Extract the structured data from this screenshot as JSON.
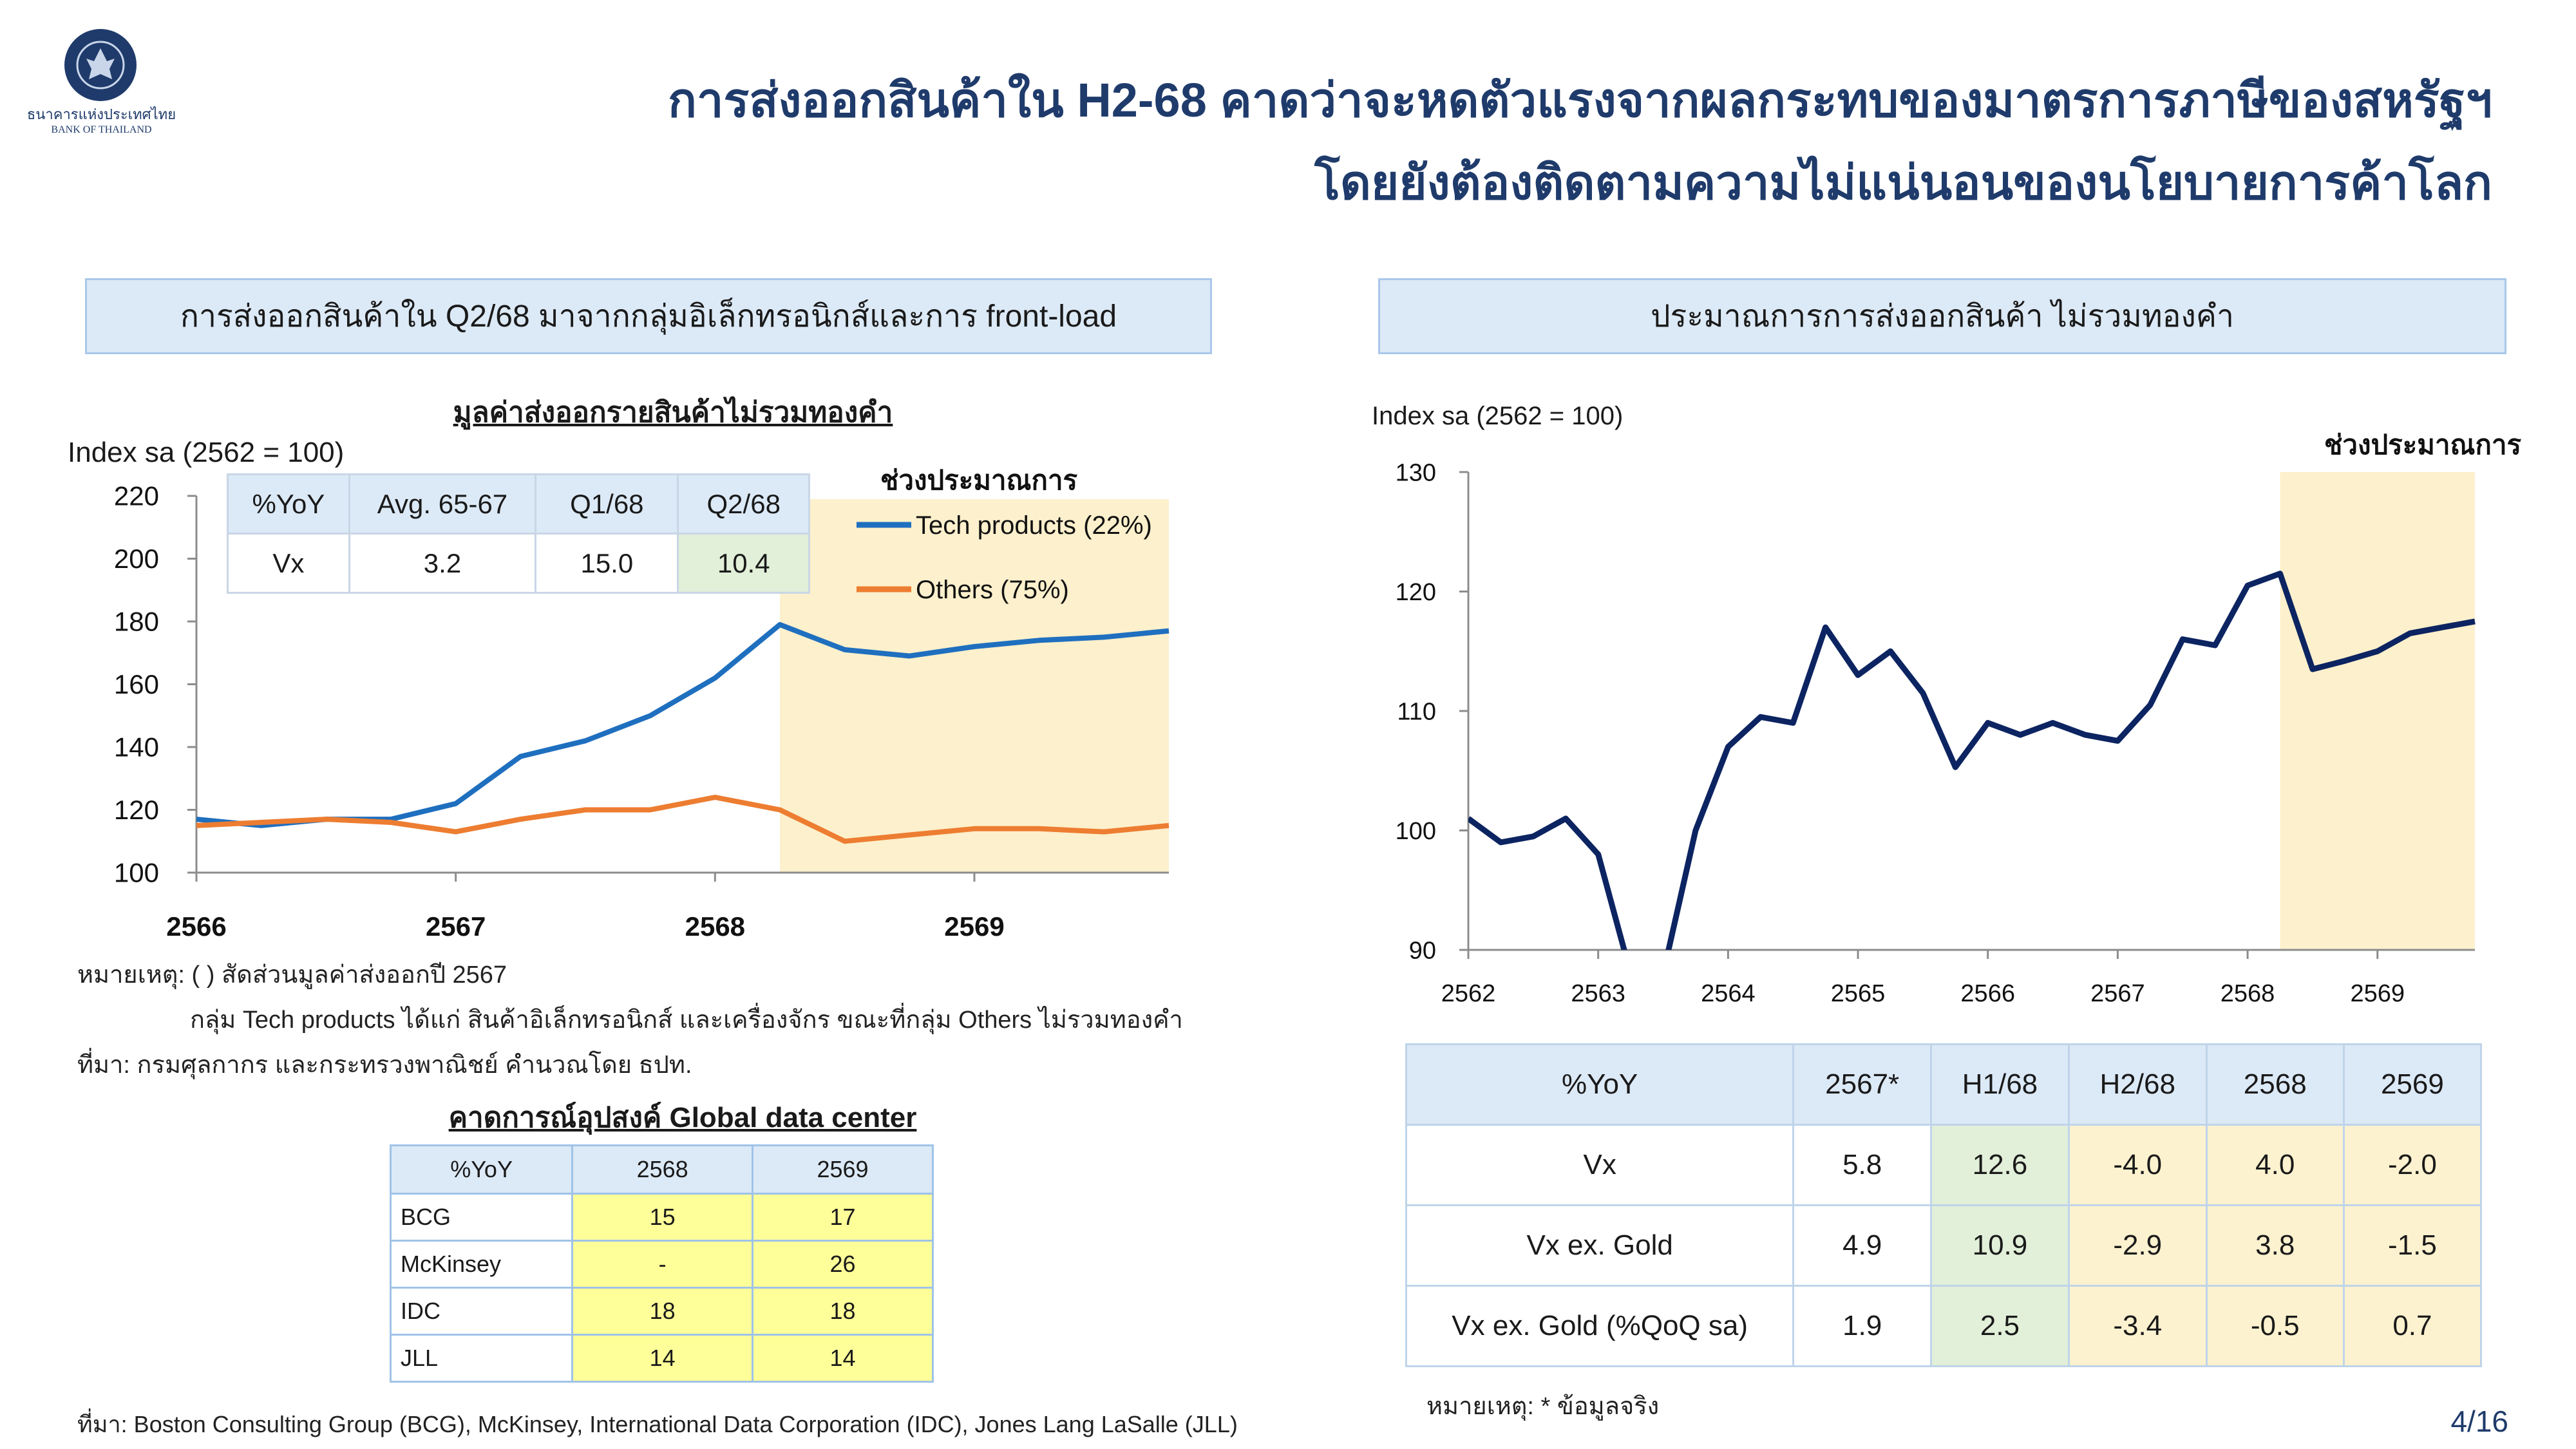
{
  "header": {
    "title_line1": "การส่งออกสินค้าใน H2-68 คาดว่าจะหดตัวแรงจากผลกระทบของมาตรการภาษีของสหรัฐฯ",
    "title_line2": "โดยยังต้องติดตามความไม่แน่นอนของนโยบายการค้าโลก",
    "logo_text_th": "ธนาคารแห่งประเทศไทย",
    "logo_text_en": "BANK OF THAILAND",
    "page_number": "4/16"
  },
  "left_panel": {
    "header": "การส่งออกสินค้าใน Q2/68 มาจากกลุ่มอิเล็กทรอนิกส์และการ front-load",
    "chart_title": "มูลค่าส่งออกรายสินค้าไม่รวมทองคำ",
    "ylabel": "Index sa (2562 = 100)",
    "forecast_label": "ช่วงประมาณการ",
    "inset_table": {
      "headers": [
        "%YoY",
        "Avg. 65-67",
        "Q1/68",
        "Q2/68"
      ],
      "row": [
        "Vx",
        "3.2",
        "15.0",
        "10.4"
      ]
    },
    "notes": [
      "หมายเหตุ: ( ) สัดส่วนมูลค่าส่งออกปี 2567",
      "กลุ่ม Tech products ได้แก่ สินค้าอิเล็กทรอนิกส์ และเครื่องจักร ขณะที่กลุ่ม Others ไม่รวมทองคำ",
      "ที่มา: กรมศุลกากร และกระทรวงพาณิชย์ คำนวณโดย ธปท."
    ],
    "dc_title": "คาดการณ์อุปสงค์ Global data center",
    "dc_table": {
      "headers": [
        "%YoY",
        "2568",
        "2569"
      ],
      "rows": [
        [
          "BCG",
          "15",
          "17"
        ],
        [
          "McKinsey",
          "-",
          "26"
        ],
        [
          "IDC",
          "18",
          "18"
        ],
        [
          "JLL",
          "14",
          "14"
        ]
      ]
    },
    "source": "ที่มา: Boston Consulting Group (BCG), McKinsey, International Data Corporation (IDC), Jones Lang LaSalle (JLL)"
  },
  "right_panel": {
    "header": "ประมาณการการส่งออกสินค้า ไม่รวมทองคำ",
    "ylabel": "Index sa (2562 = 100)",
    "forecast_label": "ช่วงประมาณการ",
    "table": {
      "headers": [
        "%YoY",
        "2567*",
        "H1/68",
        "H2/68",
        "2568",
        "2569"
      ],
      "rows": [
        [
          "Vx",
          "5.8",
          "12.6",
          "-4.0",
          "4.0",
          "-2.0"
        ],
        [
          "Vx ex. Gold",
          "4.9",
          "10.9",
          "-2.9",
          "3.8",
          "-1.5"
        ],
        [
          "Vx ex. Gold (%QoQ sa)",
          "1.9",
          "2.5",
          "-3.4",
          "-0.5",
          "0.7"
        ]
      ]
    },
    "note": "หมายเหตุ: * ข้อมูลจริง"
  },
  "chart_data": [
    {
      "type": "line",
      "title": "มูลค่าส่งออกรายสินค้าไม่รวมทองคำ",
      "ylabel": "Index sa (2562 = 100)",
      "ylim": [
        100,
        220
      ],
      "yticks": [
        100,
        120,
        140,
        160,
        180,
        200,
        220
      ],
      "xlim": [
        2566,
        2569.75
      ],
      "xticks": [
        2566,
        2567,
        2568,
        2569
      ],
      "forecast_start": 2568.25,
      "x": [
        2566,
        2566.25,
        2566.5,
        2566.75,
        2567,
        2567.25,
        2567.5,
        2567.75,
        2568,
        2568.25,
        2568.5,
        2568.75,
        2569,
        2569.25,
        2569.5,
        2569.75
      ],
      "series": [
        {
          "name": "Tech products (22%)",
          "color": "#1f6fbf",
          "values": [
            117,
            115,
            117,
            117,
            122,
            137,
            142,
            150,
            162,
            179,
            171,
            169,
            172,
            174,
            175,
            177
          ]
        },
        {
          "name": "Others (75%)",
          "color": "#ed7d31",
          "values": [
            115,
            116,
            117,
            116,
            113,
            117,
            120,
            120,
            124,
            120,
            110,
            112,
            114,
            114,
            113,
            115
          ]
        }
      ],
      "grid": false,
      "legend": "top-right"
    },
    {
      "type": "line",
      "ylabel": "Index sa (2562 = 100)",
      "ylim": [
        90,
        130
      ],
      "yticks": [
        90,
        100,
        110,
        120,
        130
      ],
      "xlim": [
        2562,
        2569.75
      ],
      "xticks": [
        2562,
        2563,
        2564,
        2565,
        2566,
        2567,
        2568,
        2569
      ],
      "forecast_start": 2568.25,
      "x": [
        2562,
        2562.25,
        2562.5,
        2562.75,
        2563,
        2563.25,
        2563.5,
        2563.75,
        2564,
        2564.25,
        2564.5,
        2564.75,
        2565,
        2565.25,
        2565.5,
        2565.75,
        2566,
        2566.25,
        2566.5,
        2566.75,
        2567,
        2567.25,
        2567.5,
        2567.75,
        2568,
        2568.25,
        2568.5,
        2568.75,
        2569,
        2569.25,
        2569.5,
        2569.75
      ],
      "series": [
        {
          "name": "",
          "color": "#0c2461",
          "values": [
            101,
            99,
            99.5,
            101,
            98,
            88,
            88,
            100,
            107,
            109.5,
            109,
            117,
            113,
            115,
            111.5,
            105.3,
            109,
            108,
            109,
            108,
            107.5,
            110.5,
            116,
            115.5,
            120.5,
            121.5,
            113.5,
            114.2,
            115,
            116.5,
            117,
            117.5
          ]
        }
      ],
      "grid": false
    }
  ]
}
